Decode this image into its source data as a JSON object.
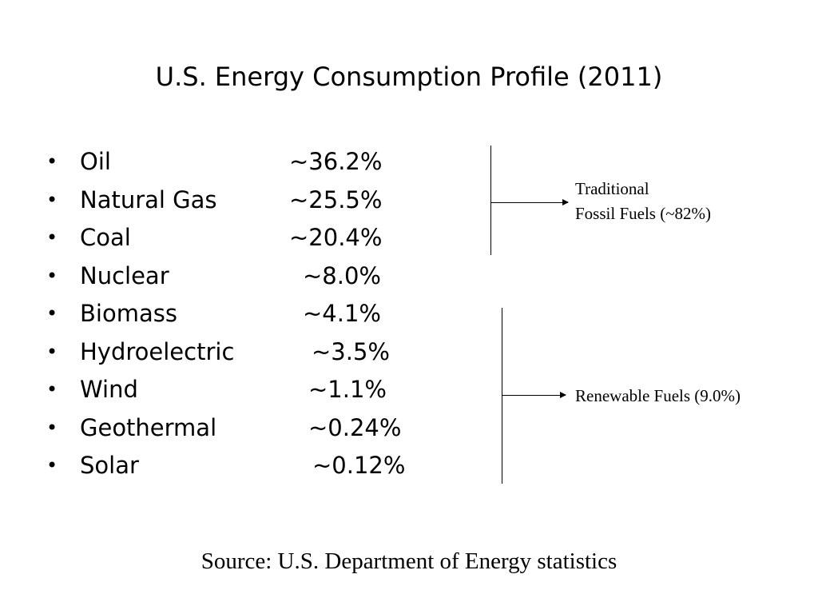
{
  "slide": {
    "title": "U.S. Energy Consumption Profile (2011)",
    "bullet_symbol": "•",
    "items": [
      {
        "name": "Oil",
        "value": "~36.2%"
      },
      {
        "name": "Natural Gas",
        "value": "~25.5%"
      },
      {
        "name": "Coal",
        "value": "~20.4%"
      },
      {
        "name": "Nuclear",
        "value": "~8.0%"
      },
      {
        "name": "Biomass",
        "value": "~4.1%"
      },
      {
        "name": "Hydroelectric",
        "value": "~3.5%"
      },
      {
        "name": "Wind",
        "value": "~1.1%"
      },
      {
        "name": "Geothermal",
        "value": "~0.24%"
      },
      {
        "name": "Solar",
        "value": "~0.12%"
      }
    ],
    "groups": {
      "fossil": {
        "line1": "Traditional",
        "line2": "Fossil Fuels (~82%)"
      },
      "renewable": {
        "label": "Renewable Fuels (9.0%)"
      }
    },
    "source": "Source: U.S. Department of Energy statistics"
  }
}
